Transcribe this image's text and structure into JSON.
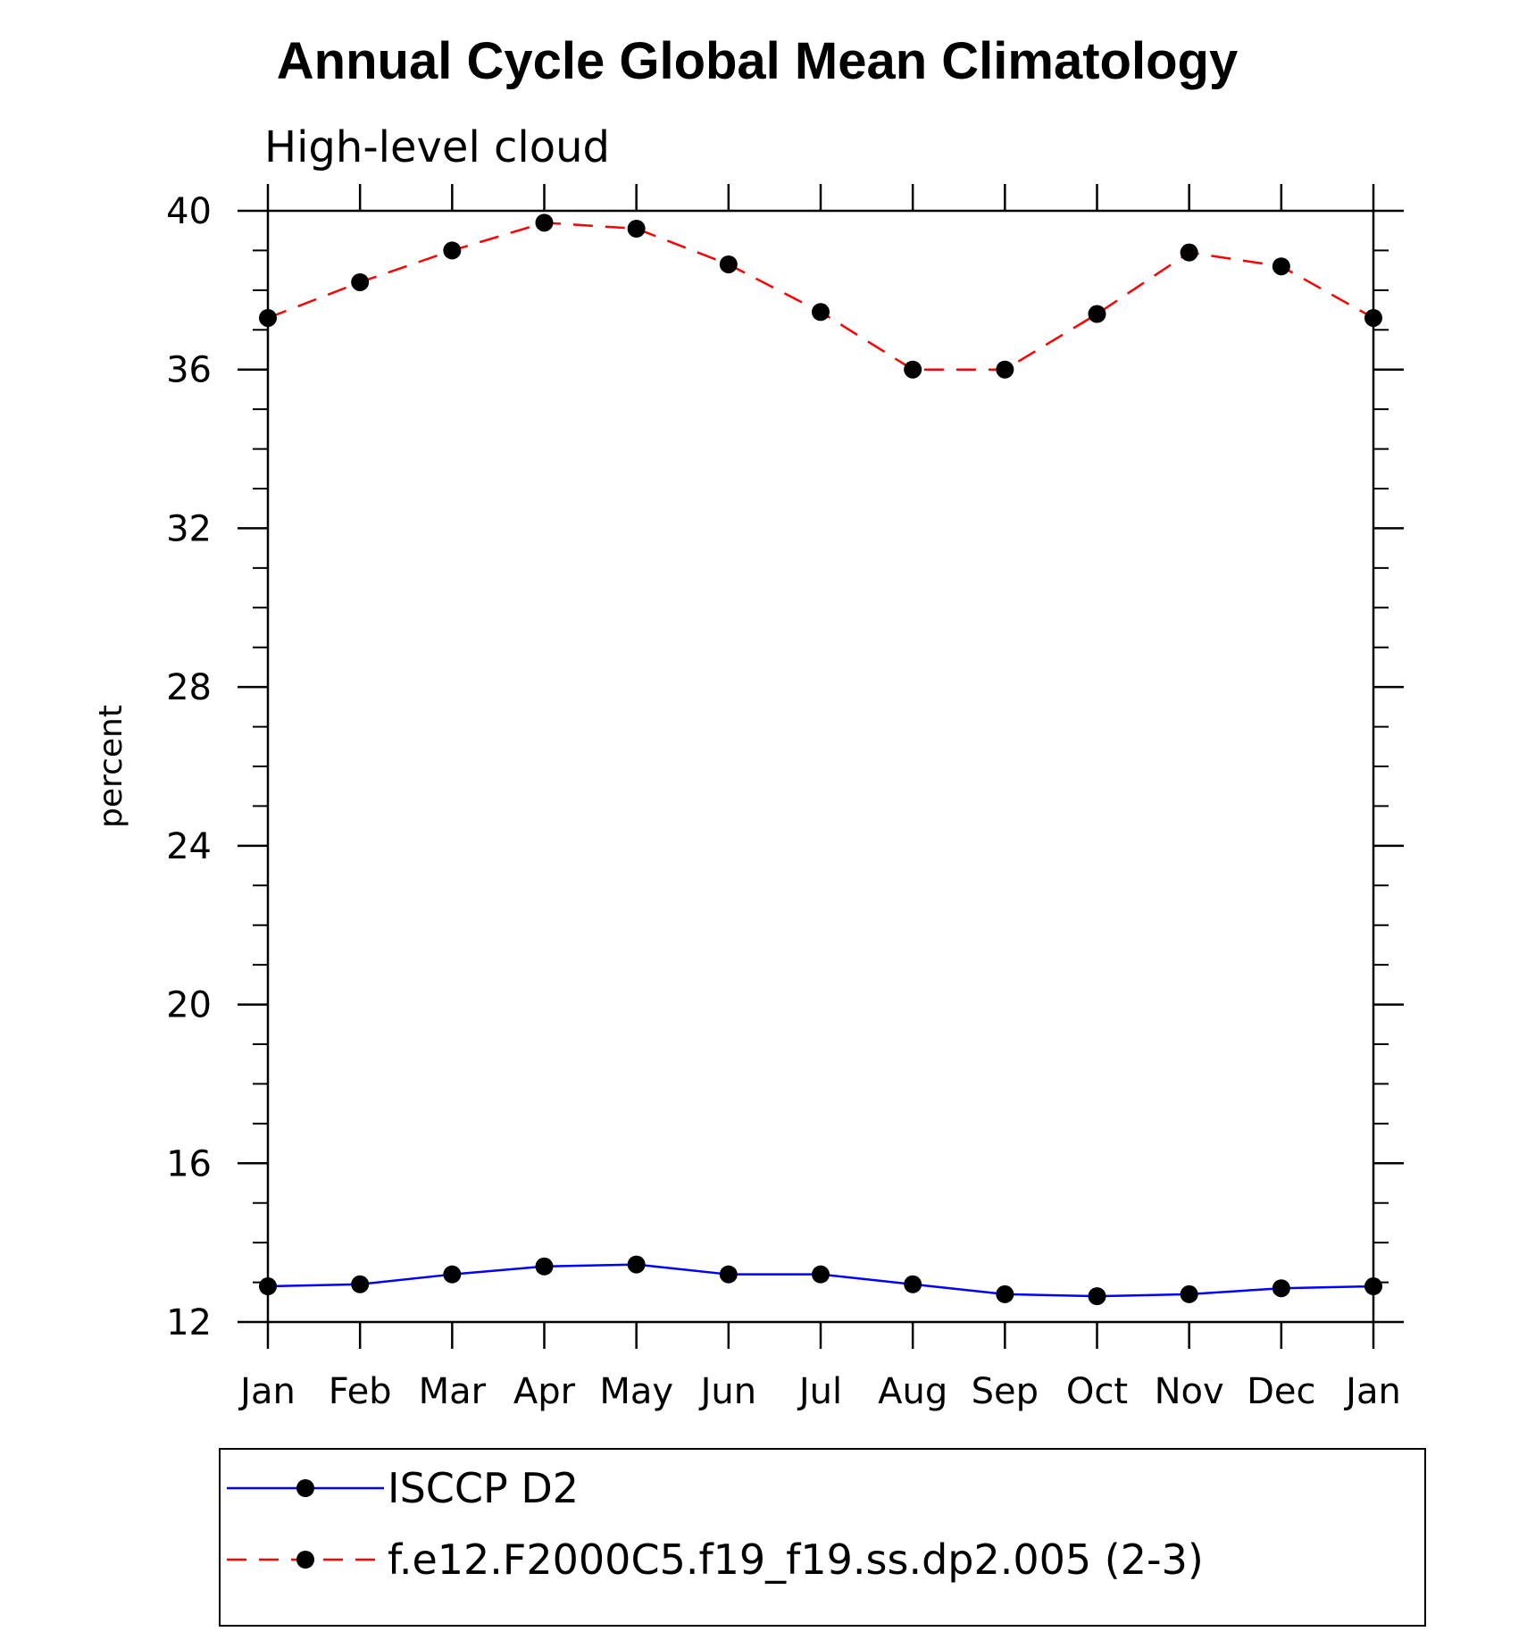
{
  "chart_data": {
    "type": "line",
    "title": "Annual Cycle Global Mean Climatology",
    "subtitle": "High-level cloud",
    "xlabel": "",
    "ylabel": "percent",
    "categories": [
      "Jan",
      "Feb",
      "Mar",
      "Apr",
      "May",
      "Jun",
      "Jul",
      "Aug",
      "Sep",
      "Oct",
      "Nov",
      "Dec",
      "Jan"
    ],
    "ylim": [
      12,
      40
    ],
    "yticks": [
      12,
      16,
      20,
      24,
      28,
      32,
      36,
      40
    ],
    "series": [
      {
        "name": "ISCCP D2",
        "color": "#0000ff",
        "dashed": false,
        "values": [
          12.9,
          12.95,
          13.2,
          13.4,
          13.45,
          13.2,
          13.2,
          12.95,
          12.7,
          12.65,
          12.7,
          12.85,
          12.9
        ]
      },
      {
        "name": "f.e12.F2000C5.f19_f19.ss.dp2.005 (2-3)",
        "color": "#ff0000",
        "dashed": true,
        "values": [
          37.3,
          38.2,
          39.0,
          39.7,
          39.55,
          38.65,
          37.45,
          36.0,
          36.0,
          37.4,
          38.95,
          38.6,
          37.3
        ]
      }
    ],
    "grid": false,
    "legend_position": "bottom"
  }
}
